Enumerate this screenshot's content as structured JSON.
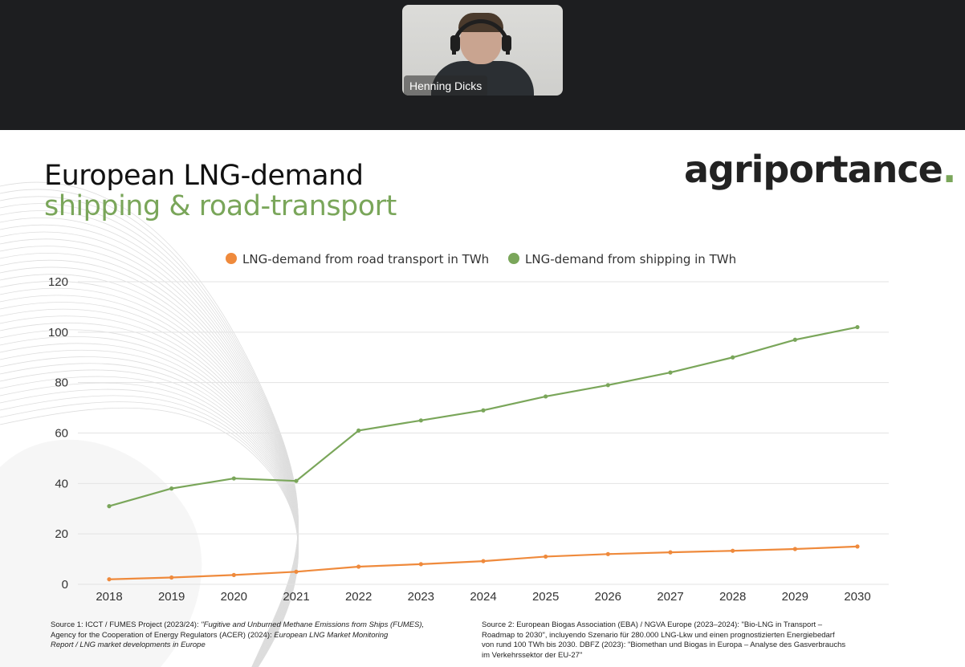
{
  "meeting": {
    "participant_name": "Henning Dicks"
  },
  "slide": {
    "title_line1": "European LNG-demand",
    "title_line2": "shipping & road-transport",
    "logo_text": "agriportance",
    "logo_dot": ".",
    "source1_plain": "Source 1: ICCT / FUMES Project (2023/24): ",
    "source1_italic": "\"Fugitive and Unburned Methane Emissions from Ships (FUMES),",
    "source1_line2_plain": "Agency for the Cooperation of Energy Regulators (ACER) (2024): ",
    "source1_line2_italic": "European LNG Market Monitoring",
    "source1_line3_italic": "Report / LNG market developments in Europe",
    "source2_line1": "Source 2: European Biogas Association (EBA) / NGVA Europe (2023–2024): \"Bio-LNG in Transport –",
    "source2_line2": "Roadmap to 2030\", incluyendo Szenario für 280.000 LNG-Lkw und einen prognostizierten Energiebedarf",
    "source2_line3": "von rund 100 TWh bis 2030. DBFZ (2023): \"Biomethan und Biogas in Europa – Analyse des Gasverbrauchs",
    "source2_line4": "im Verkehrssektor der EU-27\""
  },
  "colors": {
    "road": "#ef8a3c",
    "shipping": "#7aa65a",
    "grid": "#e3e3e3"
  },
  "chart_data": {
    "type": "line",
    "x": [
      "2018",
      "2019",
      "2020",
      "2021",
      "2022",
      "2023",
      "2024",
      "2025",
      "2026",
      "2027",
      "2028",
      "2029",
      "2030"
    ],
    "ylim": [
      0,
      120
    ],
    "yticks": [
      "0",
      "20",
      "40",
      "60",
      "80",
      "100",
      "120"
    ],
    "grid": true,
    "legend_placement": "top-center",
    "series": [
      {
        "name": "LNG-demand from road transport in TWh",
        "color_key": "road",
        "values": [
          2,
          2.7,
          3.7,
          5,
          7,
          8,
          9.2,
          11,
          12,
          12.7,
          13.3,
          14,
          15
        ]
      },
      {
        "name": "LNG-demand from shipping in TWh",
        "color_key": "shipping",
        "values": [
          31,
          38,
          42,
          41,
          61,
          65,
          69,
          74.5,
          79,
          84,
          90,
          97,
          102
        ]
      }
    ]
  }
}
